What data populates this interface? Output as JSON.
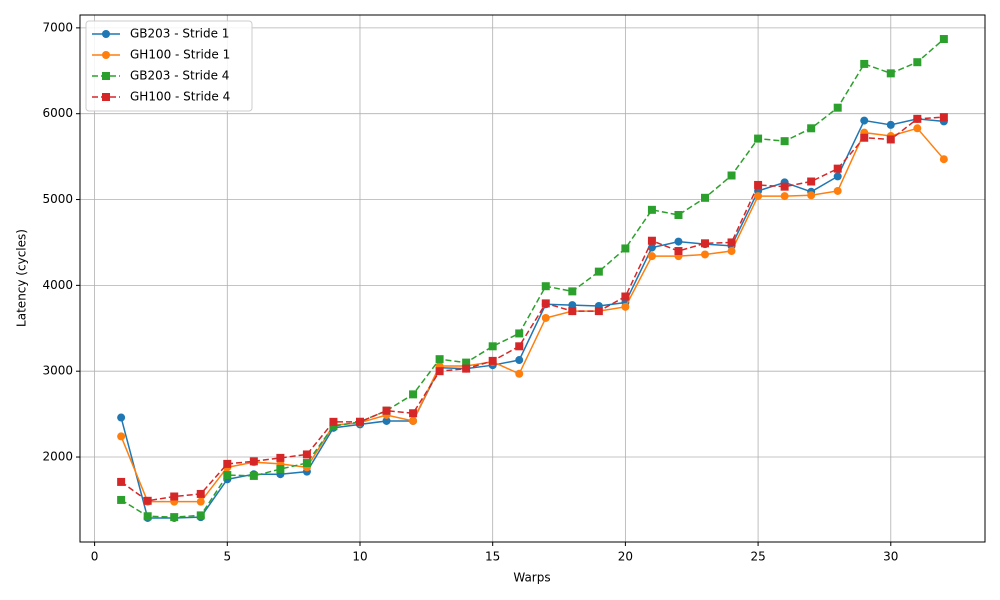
{
  "chart_data": {
    "type": "line",
    "xlabel": "Warps",
    "ylabel": "Latency (cycles)",
    "x": [
      1,
      2,
      3,
      4,
      5,
      6,
      7,
      8,
      9,
      10,
      11,
      12,
      13,
      14,
      15,
      16,
      17,
      18,
      19,
      20,
      21,
      22,
      23,
      24,
      25,
      26,
      27,
      28,
      29,
      30,
      31,
      32
    ],
    "xlim": [
      -0.55,
      33.55
    ],
    "xticks": [
      0,
      5,
      10,
      15,
      20,
      25,
      30
    ],
    "ylim": [
      1010,
      7150
    ],
    "yticks": [
      2000,
      3000,
      4000,
      5000,
      6000,
      7000
    ],
    "grid": true,
    "legend": "upper-left",
    "series": [
      {
        "name": "GB203 - Stride 1",
        "color": "#1f77b4",
        "marker": "circle",
        "linestyle": "solid",
        "values": [
          2460,
          1290,
          1290,
          1300,
          1740,
          1800,
          1800,
          1830,
          2340,
          2380,
          2420,
          2420,
          3040,
          3030,
          3070,
          3130,
          3780,
          3770,
          3760,
          3800,
          4440,
          4510,
          4480,
          4460,
          5100,
          5200,
          5090,
          5270,
          5920,
          5870,
          5940,
          5910
        ]
      },
      {
        "name": "GH100 - Stride 1",
        "color": "#ff7f0e",
        "marker": "circle",
        "linestyle": "solid",
        "values": [
          2240,
          1480,
          1480,
          1480,
          1880,
          1940,
          1920,
          1880,
          2370,
          2400,
          2490,
          2420,
          3060,
          3060,
          3110,
          2970,
          3620,
          3700,
          3700,
          3750,
          4340,
          4340,
          4360,
          4400,
          5040,
          5040,
          5050,
          5100,
          5780,
          5740,
          5830,
          5470
        ]
      },
      {
        "name": "GB203 - Stride 4",
        "color": "#2ca02c",
        "marker": "square",
        "linestyle": "dashed",
        "values": [
          1500,
          1310,
          1300,
          1320,
          1790,
          1780,
          1860,
          1930,
          2360,
          2410,
          2540,
          2730,
          3140,
          3100,
          3290,
          3440,
          3990,
          3930,
          4160,
          4430,
          4880,
          4820,
          5020,
          5280,
          5710,
          5680,
          5830,
          6070,
          6580,
          6470,
          6600,
          6870
        ]
      },
      {
        "name": "GH100 - Stride 4",
        "color": "#d62728",
        "marker": "square",
        "linestyle": "dashed",
        "values": [
          1710,
          1490,
          1540,
          1570,
          1920,
          1950,
          1990,
          2030,
          2410,
          2410,
          2540,
          2510,
          3000,
          3030,
          3120,
          3290,
          3790,
          3700,
          3700,
          3870,
          4520,
          4400,
          4490,
          4500,
          5170,
          5150,
          5210,
          5360,
          5720,
          5700,
          5940,
          5960
        ]
      }
    ]
  }
}
